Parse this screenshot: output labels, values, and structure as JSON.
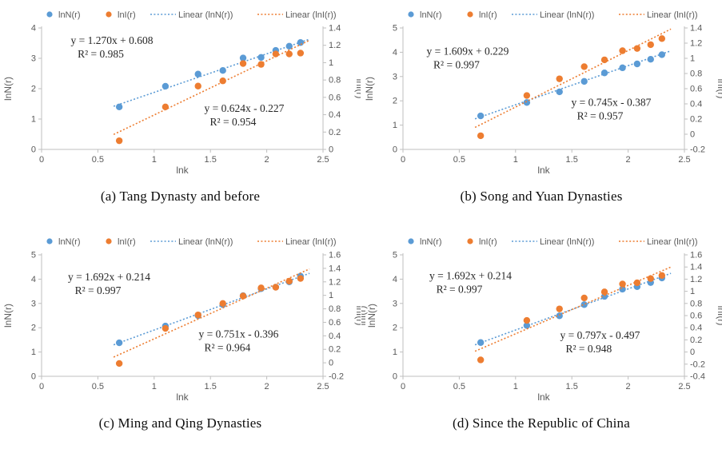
{
  "figure": {
    "colors": {
      "series_lnN": "#5b9bd5",
      "series_lnI": "#ed7d31",
      "axis_line": "#bfbfbf",
      "axis_text": "#595959",
      "equation_text": "#262626"
    },
    "legend": {
      "items": [
        {
          "label": "lnN(r)",
          "type": "marker",
          "color": "series_lnN"
        },
        {
          "label": "lnI(r)",
          "type": "marker",
          "color": "series_lnI"
        },
        {
          "label": "Linear (lnN(r))",
          "type": "dotted-line",
          "color": "series_lnN"
        },
        {
          "label": "Linear (lnI(r))",
          "type": "dotted-line",
          "color": "series_lnI"
        }
      ]
    }
  },
  "chart_data": [
    {
      "id": "a",
      "type": "scatter",
      "caption": "(a) Tang Dynasty and before",
      "x": [
        0.69,
        1.1,
        1.39,
        1.61,
        1.79,
        1.95,
        2.08,
        2.2,
        2.3
      ],
      "series": [
        {
          "name": "lnN(r)",
          "axis": "left",
          "values": [
            1.4,
            2.08,
            2.48,
            2.6,
            3.01,
            3.03,
            3.26,
            3.4,
            3.52
          ],
          "trend": {
            "slope": 1.27,
            "intercept": 0.608,
            "equation": "y = 1.270x  + 0.608",
            "r2": "R² = 0.985",
            "fx": 0.25,
            "fy": 0.13
          }
        },
        {
          "name": "lnI(r)",
          "axis": "right",
          "values": [
            0.1,
            0.49,
            0.73,
            0.79,
            0.99,
            0.98,
            1.1,
            1.1,
            1.11
          ],
          "trend": {
            "slope": 0.624,
            "intercept": -0.227,
            "equation": "y = 0.624x  - 0.227",
            "r2": "R² = 0.954",
            "fx": 0.72,
            "fy": 0.69
          }
        }
      ],
      "x_axis": {
        "label": "lnk",
        "min": 0,
        "max": 2.5,
        "ticks": [
          "0",
          "0.5",
          "1",
          "1.5",
          "2",
          "2.5"
        ]
      },
      "left_axis": {
        "label": "lnN(r)",
        "min": 0,
        "max": 4,
        "ticks": [
          "0",
          "1",
          "2",
          "3",
          "4"
        ]
      },
      "right_axis": {
        "label": "lnI(r)",
        "min": 0,
        "max": 1.4,
        "ticks": [
          "0",
          "0.2",
          "0.4",
          "0.6",
          "0.8",
          "1",
          "1.2",
          "1.4"
        ]
      },
      "extra_left_label": null
    },
    {
      "id": "b",
      "type": "scatter",
      "caption": "(b) Song and Yuan Dynasties",
      "x": [
        0.69,
        1.1,
        1.39,
        1.61,
        1.79,
        1.95,
        2.08,
        2.2,
        2.3
      ],
      "series": [
        {
          "name": "lnN(r)",
          "axis": "left",
          "values": [
            1.38,
            1.93,
            2.37,
            2.8,
            3.15,
            3.36,
            3.52,
            3.71,
            3.9
          ],
          "trend": {
            "slope": 1.609,
            "intercept": 0.229,
            "equation": "y = 1.609x  + 0.229",
            "r2": "R² = 0.997",
            "fx": 0.23,
            "fy": 0.22
          }
        },
        {
          "name": "lnI(r)",
          "axis": "right",
          "values": [
            -0.02,
            0.51,
            0.73,
            0.89,
            0.98,
            1.1,
            1.13,
            1.18,
            1.26
          ],
          "trend": {
            "slope": 0.745,
            "intercept": -0.387,
            "equation": "y = 0.745x  - 0.387",
            "r2": "R² = 0.957",
            "fx": 0.74,
            "fy": 0.64
          }
        }
      ],
      "x_axis": {
        "label": "lnk",
        "min": 0,
        "max": 2.5,
        "ticks": [
          "0",
          "0.5",
          "1",
          "1.5",
          "2",
          "2.5"
        ]
      },
      "left_axis": {
        "label": "lnN(r)",
        "min": 0,
        "max": 5,
        "ticks": [
          "0",
          "1",
          "2",
          "3",
          "4",
          "5"
        ]
      },
      "right_axis": {
        "label": "lnI(r)",
        "min": -0.2,
        "max": 1.4,
        "ticks": [
          "-0.2",
          "0",
          "0.2",
          "0.4",
          "0.6",
          "0.8",
          "1",
          "1.2",
          "1.4"
        ]
      },
      "extra_left_label": null
    },
    {
      "id": "c",
      "type": "scatter",
      "caption": "(c) Ming and Qing Dynasties",
      "x": [
        0.69,
        1.1,
        1.39,
        1.61,
        1.79,
        1.95,
        2.08,
        2.2,
        2.3
      ],
      "series": [
        {
          "name": "lnN(r)",
          "axis": "left",
          "values": [
            1.38,
            2.07,
            2.5,
            2.95,
            3.32,
            3.61,
            3.67,
            3.89,
            4.12
          ],
          "trend": {
            "slope": 1.692,
            "intercept": 0.214,
            "equation": "y = 1.692x  + 0.214",
            "r2": "R² = 0.997",
            "fx": 0.24,
            "fy": 0.21
          }
        },
        {
          "name": "lnI(r)",
          "axis": "right",
          "values": [
            -0.01,
            0.51,
            0.71,
            0.88,
            0.99,
            1.11,
            1.12,
            1.21,
            1.25
          ],
          "trend": {
            "slope": 0.751,
            "intercept": -0.396,
            "equation": "y = 0.751x  - 0.396",
            "r2": "R² = 0.964",
            "fx": 0.7,
            "fy": 0.68
          }
        }
      ],
      "x_axis": {
        "label": "lnk",
        "min": 0,
        "max": 2.5,
        "ticks": [
          "0",
          "0.5",
          "1",
          "1.5",
          "2",
          "2.5"
        ]
      },
      "left_axis": {
        "label": "lnN(r)",
        "min": 0,
        "max": 5,
        "ticks": [
          "0",
          "1",
          "2",
          "3",
          "4",
          "5"
        ]
      },
      "right_axis": {
        "label": "lnI(r)",
        "min": -0.2,
        "max": 1.6,
        "ticks": [
          "-0.2",
          "0",
          "0.2",
          "0.4",
          "0.6",
          "0.8",
          "1",
          "1.2",
          "1.4",
          "1.6"
        ]
      },
      "extra_left_label": null
    },
    {
      "id": "d",
      "type": "scatter",
      "caption": "(d) Since the Republic of China",
      "x": [
        0.69,
        1.1,
        1.39,
        1.61,
        1.79,
        1.95,
        2.08,
        2.2,
        2.3
      ],
      "series": [
        {
          "name": "lnN(r)",
          "axis": "left",
          "values": [
            1.39,
            2.09,
            2.49,
            2.95,
            3.29,
            3.59,
            3.69,
            3.86,
            4.05
          ],
          "trend": {
            "slope": 1.692,
            "intercept": 0.214,
            "equation": "y = 1.692x  + 0.214",
            "r2": "R² = 0.997",
            "fx": 0.24,
            "fy": 0.2
          }
        },
        {
          "name": "lnI(r)",
          "axis": "right",
          "values": [
            -0.13,
            0.52,
            0.71,
            0.89,
            0.99,
            1.12,
            1.14,
            1.21,
            1.26
          ],
          "trend": {
            "slope": 0.797,
            "intercept": -0.497,
            "equation": "y = 0.797x  - 0.497",
            "r2": "R² = 0.948",
            "fx": 0.7,
            "fy": 0.69
          }
        }
      ],
      "x_axis": {
        "label": "lnk",
        "min": 0,
        "max": 2.5,
        "ticks": [
          "0",
          "0.5",
          "1",
          "1.5",
          "2",
          "2.5"
        ]
      },
      "left_axis": {
        "label": "lnN(r)",
        "min": 0,
        "max": 5,
        "ticks": [
          "0",
          "1",
          "2",
          "3",
          "4",
          "5"
        ]
      },
      "right_axis": {
        "label": "lnI(r)",
        "min": -0.4,
        "max": 1.6,
        "ticks": [
          "-0.4",
          "-0.2",
          "0",
          "0.2",
          "0.4",
          "0.6",
          "0.8",
          "1",
          "1.2",
          "1.4",
          "1.6"
        ]
      },
      "extra_left_label": "lnI(r)"
    }
  ]
}
